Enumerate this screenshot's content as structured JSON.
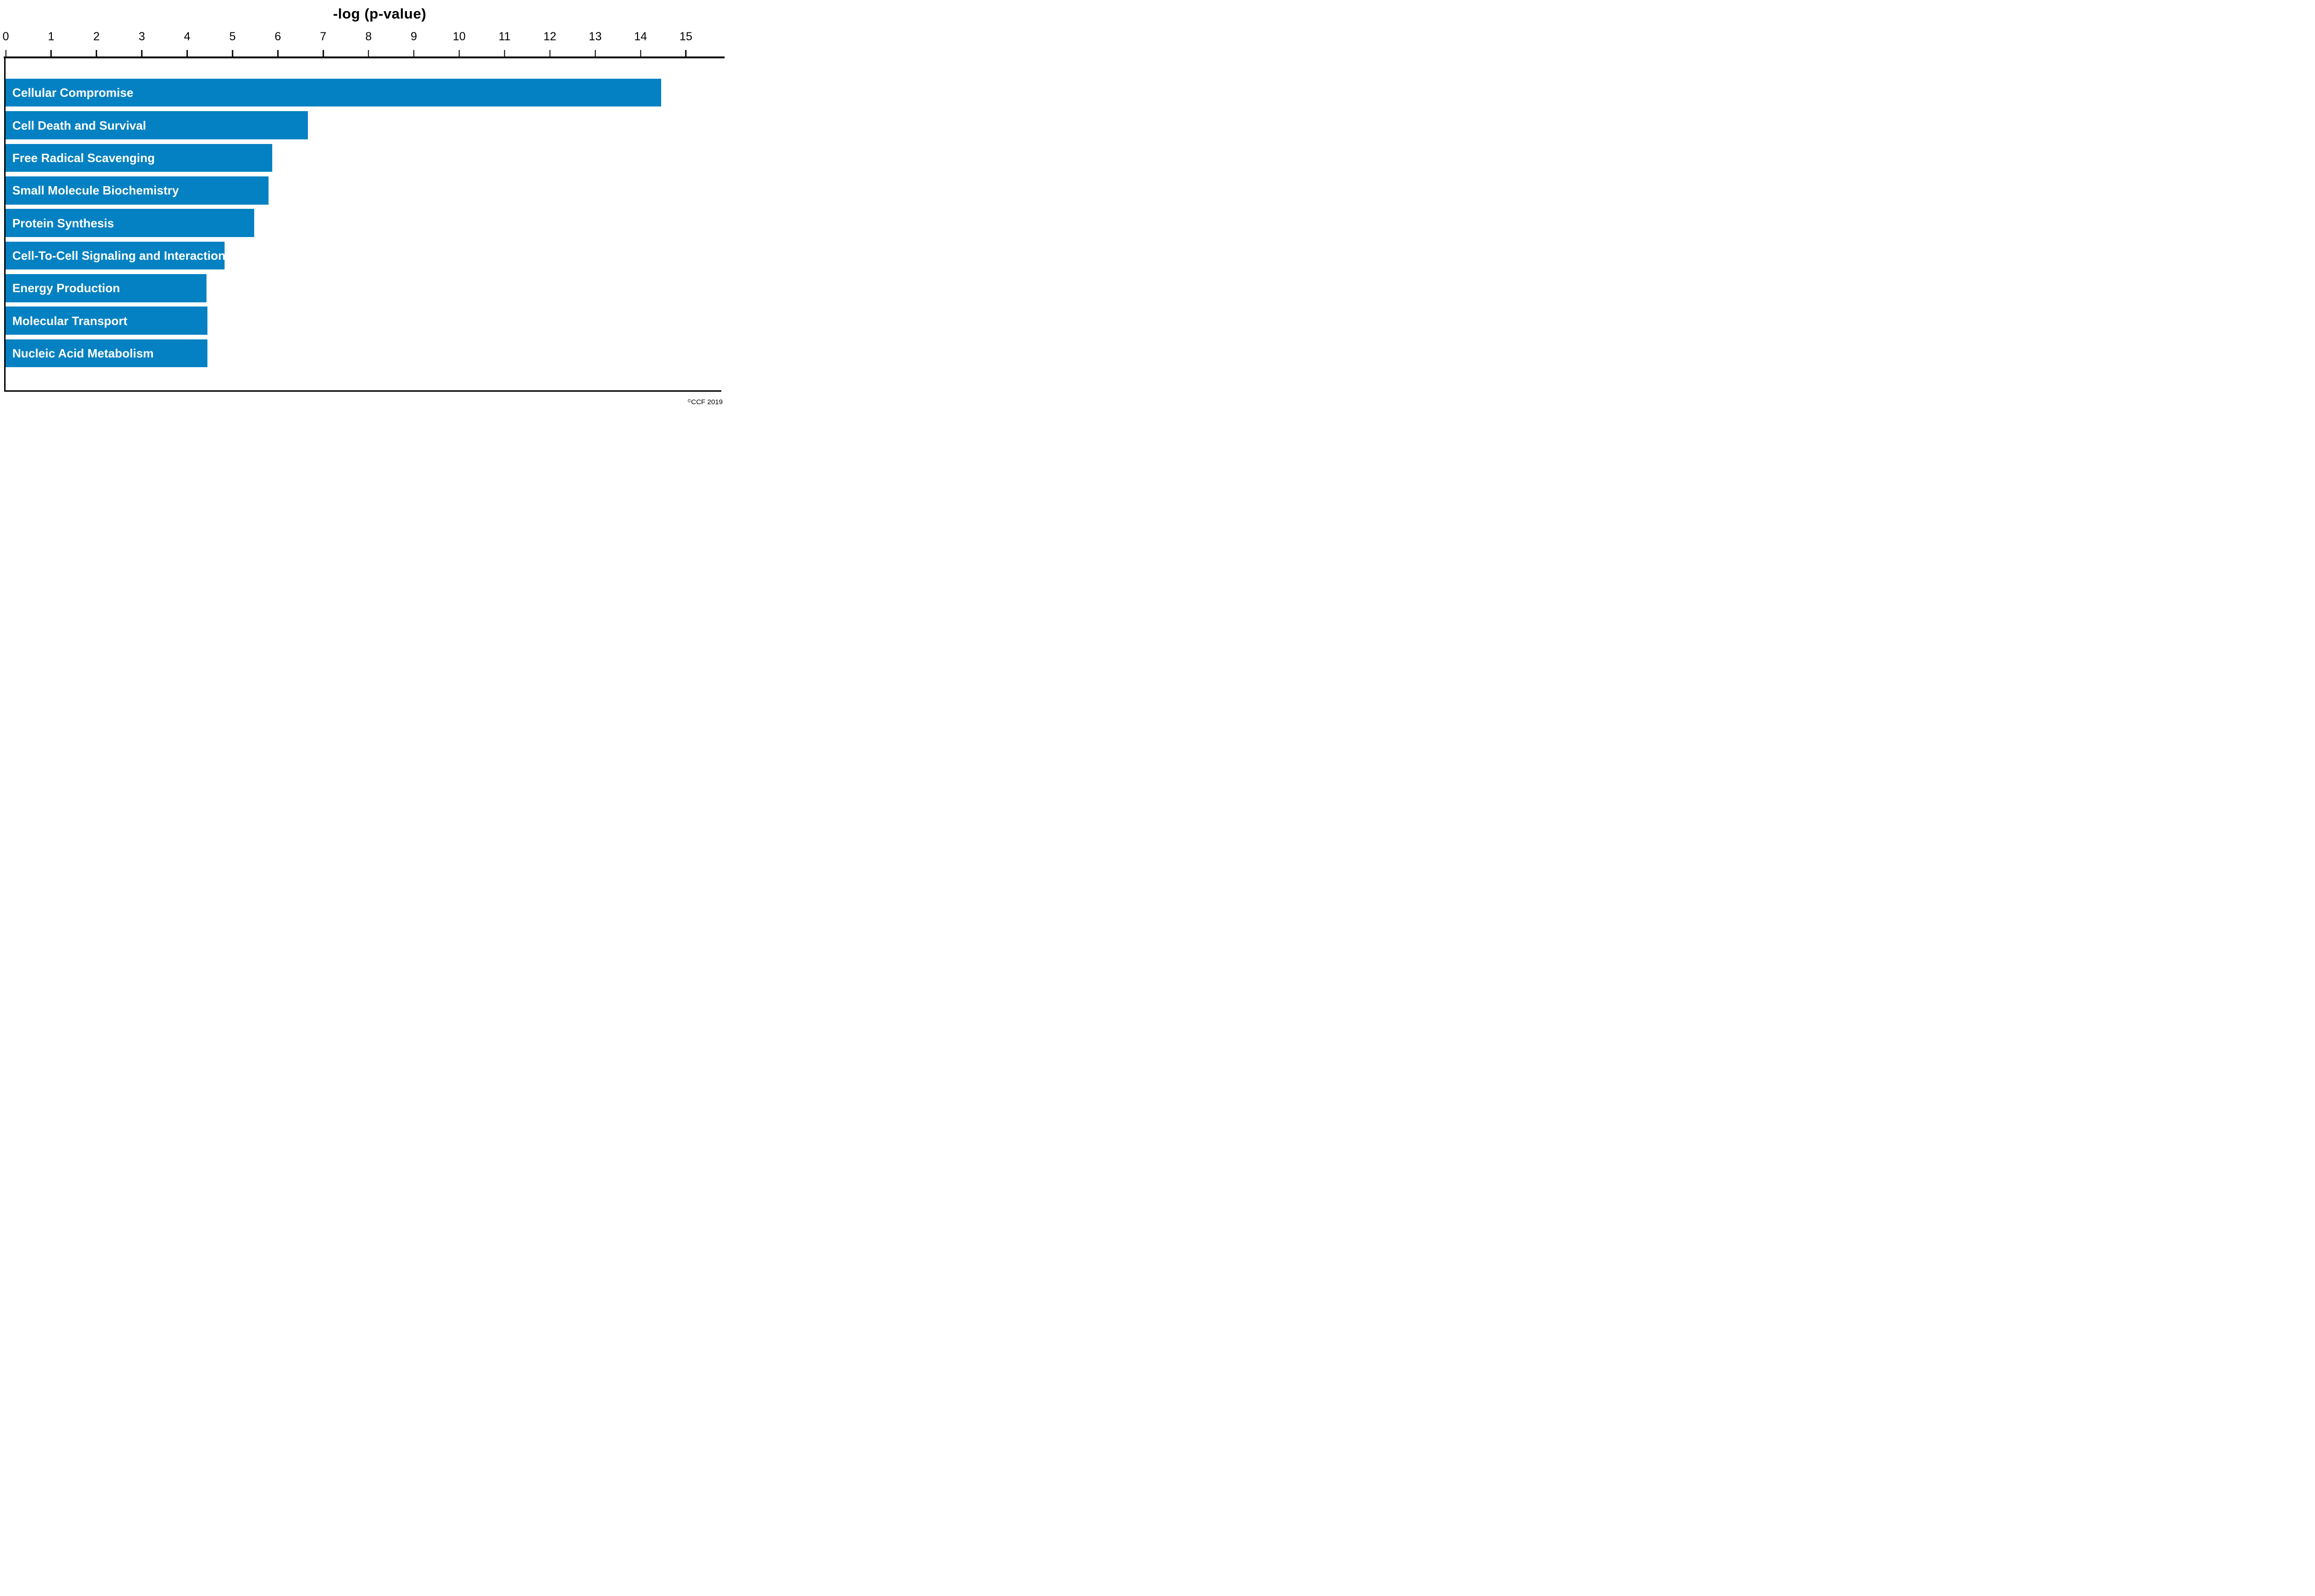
{
  "chart_data": {
    "type": "bar",
    "orientation": "horizontal",
    "title": "-log (p-value)",
    "xlabel": "-log (p-value)",
    "ylabel": "",
    "categories": [
      "Cellular Compromise",
      "Cell Death and Survival",
      "Free Radical Scavenging",
      "Small Molecule Biochemistry",
      "Protein Synthesis",
      "Cell-To-Cell Signaling and Interaction",
      "Energy Production",
      "Molecular Transport",
      "Nucleic Acid Metabolism"
    ],
    "values": [
      14.45,
      6.66,
      5.88,
      5.79,
      5.48,
      4.82,
      4.43,
      4.45,
      4.45
    ],
    "xticks": [
      "0",
      "1",
      "2",
      "3",
      "4",
      "5",
      "6",
      "7",
      "8",
      "9",
      "10",
      "11",
      "12",
      "13",
      "14",
      "15"
    ],
    "xlim": [
      0,
      15.9
    ],
    "grid": false,
    "legend_position": "none",
    "bar_color": "#0481c2",
    "bar_label_color": "#ffffff",
    "axis_color": "#000000"
  },
  "watermark": {
    "symbol": "©",
    "text": "CCF 2019"
  },
  "colors": {
    "background": "#ffffff",
    "bar": "#0481c2",
    "axis": "#000000",
    "bar_text": "#ffffff"
  }
}
